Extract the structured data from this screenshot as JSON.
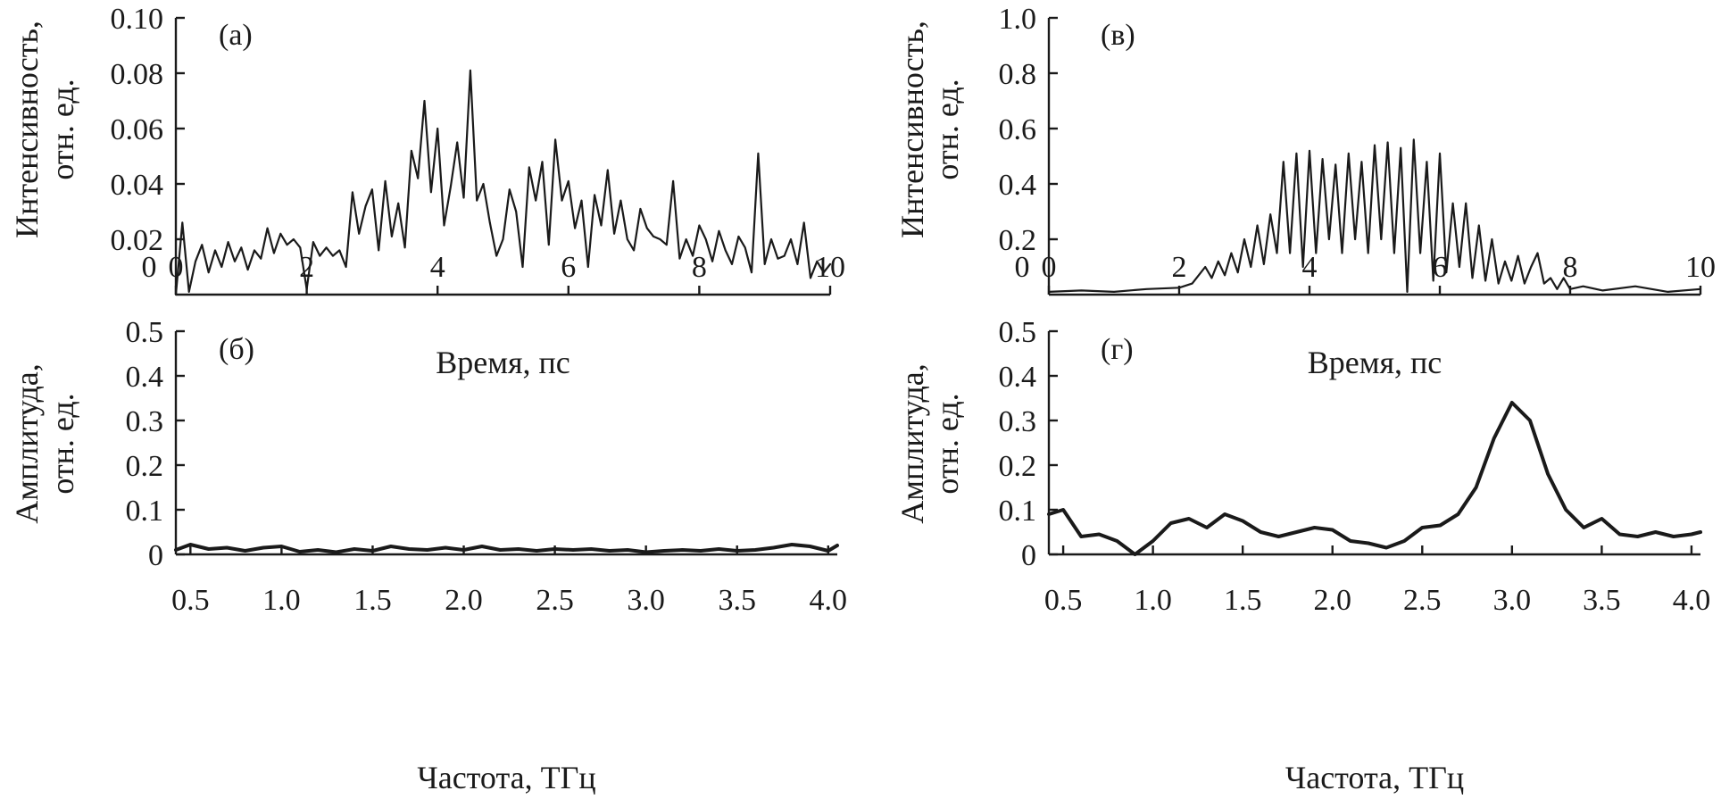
{
  "chart_data": [
    {
      "panel": "(a)",
      "type": "line",
      "title": "",
      "xlabel": "Время, пс",
      "ylabel": [
        "Интенсивность,",
        "отн. ед."
      ],
      "xlim": [
        0,
        10
      ],
      "ylim": [
        0,
        0.1
      ],
      "xticks": [
        "0",
        "2",
        "4",
        "6",
        "8",
        "10"
      ],
      "yticks": [
        "0.02",
        "0.04",
        "0.06",
        "0.08",
        "0.10"
      ],
      "grid": false,
      "series": [
        {
          "x": [
            0,
            0.1,
            0.2,
            0.3,
            0.4,
            0.5,
            0.6,
            0.7,
            0.8,
            0.9,
            1.0,
            1.1,
            1.2,
            1.3,
            1.4,
            1.5,
            1.6,
            1.7,
            1.8,
            1.9,
            2.0,
            2.1,
            2.2,
            2.3,
            2.4,
            2.5,
            2.6,
            2.7,
            2.8,
            2.9,
            3.0,
            3.1,
            3.2,
            3.3,
            3.4,
            3.5,
            3.6,
            3.7,
            3.8,
            3.9,
            4.0,
            4.1,
            4.2,
            4.3,
            4.4,
            4.5,
            4.6,
            4.7,
            4.8,
            4.9,
            5.0,
            5.1,
            5.2,
            5.3,
            5.4,
            5.5,
            5.6,
            5.7,
            5.8,
            5.9,
            6.0,
            6.1,
            6.2,
            6.3,
            6.4,
            6.5,
            6.6,
            6.7,
            6.8,
            6.9,
            7.0,
            7.1,
            7.2,
            7.3,
            7.4,
            7.5,
            7.6,
            7.7,
            7.8,
            7.9,
            8.0,
            8.1,
            8.2,
            8.3,
            8.4,
            8.5,
            8.6,
            8.7,
            8.8,
            8.9,
            9.0,
            9.1,
            9.2,
            9.3,
            9.4,
            9.5,
            9.6,
            9.7,
            9.8,
            9.9,
            10.0
          ],
          "y": [
            0.0,
            0.026,
            0.001,
            0.012,
            0.018,
            0.008,
            0.016,
            0.01,
            0.019,
            0.012,
            0.017,
            0.009,
            0.016,
            0.013,
            0.024,
            0.015,
            0.022,
            0.018,
            0.02,
            0.017,
            0.002,
            0.019,
            0.014,
            0.017,
            0.014,
            0.016,
            0.01,
            0.037,
            0.022,
            0.032,
            0.038,
            0.016,
            0.041,
            0.021,
            0.033,
            0.017,
            0.052,
            0.042,
            0.07,
            0.037,
            0.06,
            0.025,
            0.039,
            0.055,
            0.035,
            0.081,
            0.034,
            0.04,
            0.026,
            0.014,
            0.02,
            0.038,
            0.03,
            0.01,
            0.046,
            0.034,
            0.048,
            0.018,
            0.056,
            0.034,
            0.041,
            0.024,
            0.034,
            0.01,
            0.036,
            0.025,
            0.045,
            0.022,
            0.034,
            0.02,
            0.016,
            0.031,
            0.024,
            0.021,
            0.02,
            0.018,
            0.041,
            0.013,
            0.02,
            0.014,
            0.025,
            0.02,
            0.012,
            0.023,
            0.016,
            0.011,
            0.021,
            0.017,
            0.008,
            0.051,
            0.011,
            0.02,
            0.013,
            0.014,
            0.02,
            0.011,
            0.026,
            0.006,
            0.012,
            0.008,
            0.011
          ]
        }
      ]
    },
    {
      "panel": "(б)",
      "type": "line",
      "title": "",
      "xlabel": "Частота, ТГц",
      "ylabel": [
        "Амплитуда,",
        "отн. ед."
      ],
      "xlim": [
        0.42,
        4.05
      ],
      "ylim": [
        0,
        0.5
      ],
      "xticks": [
        "0.5",
        "1.0",
        "1.5",
        "2.0",
        "2.5",
        "3.0",
        "3.5",
        "4.0"
      ],
      "yticks": [
        "0",
        "0.1",
        "0.2",
        "0.3",
        "0.4",
        "0.5"
      ],
      "grid": false,
      "series": [
        {
          "x": [
            0.42,
            0.5,
            0.6,
            0.7,
            0.8,
            0.9,
            1.0,
            1.1,
            1.2,
            1.3,
            1.4,
            1.5,
            1.6,
            1.7,
            1.8,
            1.9,
            2.0,
            2.1,
            2.2,
            2.3,
            2.4,
            2.5,
            2.6,
            2.7,
            2.8,
            2.9,
            3.0,
            3.1,
            3.2,
            3.3,
            3.4,
            3.5,
            3.6,
            3.7,
            3.8,
            3.9,
            4.0,
            4.05
          ],
          "y": [
            0.01,
            0.022,
            0.012,
            0.015,
            0.008,
            0.015,
            0.018,
            0.006,
            0.01,
            0.005,
            0.012,
            0.008,
            0.018,
            0.012,
            0.01,
            0.015,
            0.01,
            0.018,
            0.01,
            0.012,
            0.008,
            0.012,
            0.01,
            0.012,
            0.008,
            0.01,
            0.005,
            0.008,
            0.01,
            0.008,
            0.012,
            0.008,
            0.01,
            0.015,
            0.022,
            0.018,
            0.008,
            0.02
          ]
        }
      ]
    },
    {
      "panel": "(в)",
      "type": "line",
      "title": "",
      "xlabel": "Время, пс",
      "ylabel": [
        "Интенсивность,",
        "отн. ед."
      ],
      "xlim": [
        0,
        10
      ],
      "ylim": [
        0,
        1.0
      ],
      "xticks": [
        "0",
        "2",
        "4",
        "6",
        "8",
        "10"
      ],
      "yticks": [
        "0.2",
        "0.4",
        "0.6",
        "0.8",
        "1.0"
      ],
      "grid": false,
      "series": [
        {
          "x": [
            0,
            0.5,
            1.0,
            1.5,
            2.0,
            2.2,
            2.4,
            2.5,
            2.6,
            2.7,
            2.8,
            2.9,
            3.0,
            3.1,
            3.2,
            3.3,
            3.4,
            3.5,
            3.6,
            3.7,
            3.8,
            3.9,
            4.0,
            4.1,
            4.2,
            4.3,
            4.4,
            4.5,
            4.6,
            4.7,
            4.8,
            4.9,
            5.0,
            5.1,
            5.2,
            5.3,
            5.4,
            5.5,
            5.6,
            5.7,
            5.8,
            5.9,
            6.0,
            6.1,
            6.2,
            6.3,
            6.4,
            6.5,
            6.6,
            6.7,
            6.8,
            6.9,
            7.0,
            7.1,
            7.2,
            7.3,
            7.4,
            7.5,
            7.6,
            7.7,
            7.8,
            7.9,
            8.0,
            8.2,
            8.5,
            9.0,
            9.5,
            10.0
          ],
          "y": [
            0.01,
            0.015,
            0.01,
            0.02,
            0.025,
            0.04,
            0.1,
            0.06,
            0.12,
            0.07,
            0.15,
            0.08,
            0.2,
            0.1,
            0.25,
            0.11,
            0.29,
            0.15,
            0.48,
            0.15,
            0.51,
            0.1,
            0.52,
            0.15,
            0.49,
            0.2,
            0.47,
            0.15,
            0.51,
            0.2,
            0.48,
            0.15,
            0.54,
            0.2,
            0.55,
            0.15,
            0.53,
            0.01,
            0.56,
            0.15,
            0.48,
            0.05,
            0.51,
            0.08,
            0.33,
            0.1,
            0.33,
            0.06,
            0.25,
            0.05,
            0.2,
            0.04,
            0.12,
            0.05,
            0.14,
            0.04,
            0.1,
            0.15,
            0.04,
            0.06,
            0.02,
            0.06,
            0.02,
            0.03,
            0.015,
            0.03,
            0.01,
            0.02
          ]
        }
      ]
    },
    {
      "panel": "(г)",
      "type": "line",
      "title": "",
      "xlabel": "Частота, ТГц",
      "ylabel": [
        "Амплитуда,",
        "отн. ед."
      ],
      "xlim": [
        0.42,
        4.05
      ],
      "ylim": [
        0,
        0.5
      ],
      "xticks": [
        "0.5",
        "1.0",
        "1.5",
        "2.0",
        "2.5",
        "3.0",
        "3.5",
        "4.0"
      ],
      "yticks": [
        "0",
        "0.1",
        "0.2",
        "0.3",
        "0.4",
        "0.5"
      ],
      "grid": false,
      "series": [
        {
          "x": [
            0.42,
            0.5,
            0.6,
            0.7,
            0.8,
            0.9,
            1.0,
            1.1,
            1.2,
            1.3,
            1.4,
            1.5,
            1.6,
            1.7,
            1.8,
            1.9,
            2.0,
            2.1,
            2.2,
            2.3,
            2.4,
            2.5,
            2.6,
            2.7,
            2.8,
            2.9,
            3.0,
            3.1,
            3.2,
            3.3,
            3.4,
            3.5,
            3.6,
            3.7,
            3.8,
            3.9,
            4.0,
            4.05
          ],
          "y": [
            0.09,
            0.1,
            0.04,
            0.045,
            0.03,
            0.0,
            0.03,
            0.07,
            0.08,
            0.06,
            0.09,
            0.075,
            0.05,
            0.04,
            0.05,
            0.06,
            0.055,
            0.03,
            0.025,
            0.015,
            0.03,
            0.06,
            0.065,
            0.09,
            0.15,
            0.26,
            0.34,
            0.3,
            0.18,
            0.1,
            0.06,
            0.08,
            0.045,
            0.04,
            0.05,
            0.04,
            0.045,
            0.05
          ]
        }
      ]
    }
  ]
}
